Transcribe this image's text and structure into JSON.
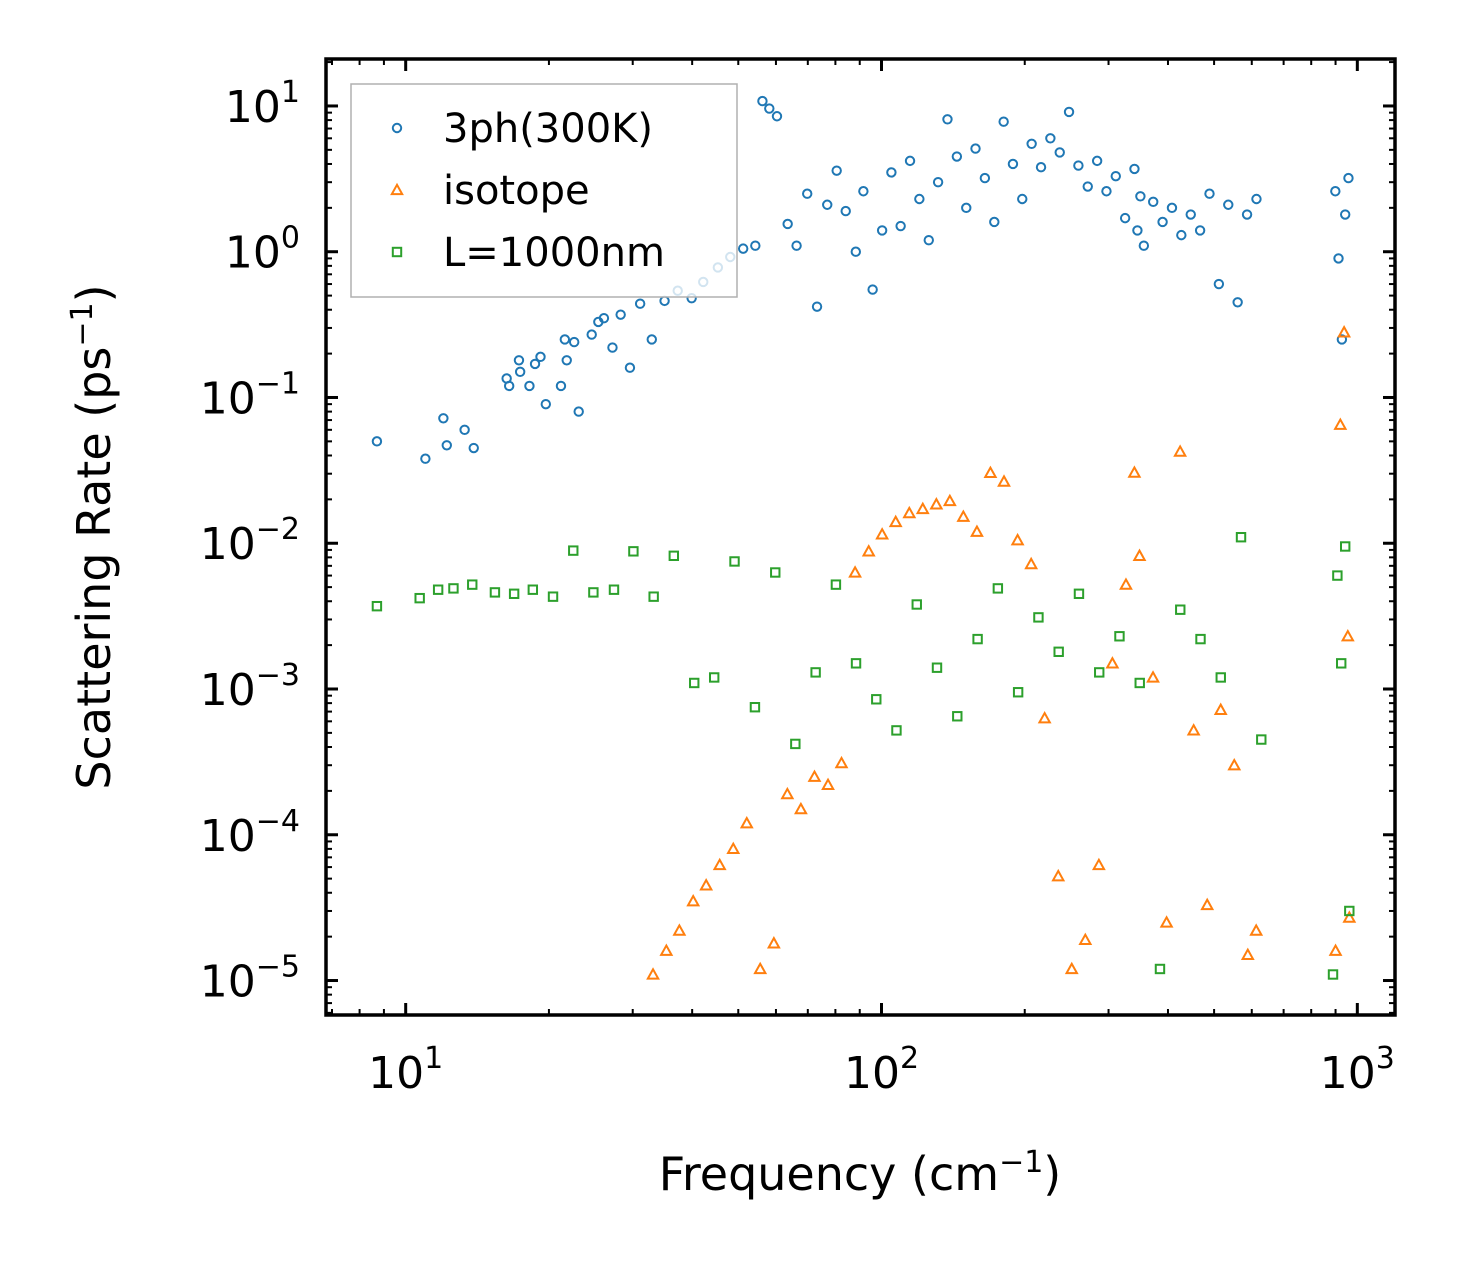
{
  "chart_data": {
    "type": "scatter",
    "title": "",
    "xlabel": "Frequency (cm",
    "xlabel_sup": "−1",
    "xlabel_end": ")",
    "ylabel": "Scattering Rate (ps",
    "ylabel_sup": "−1",
    "ylabel_end": ")",
    "xscale": "log",
    "yscale": "log",
    "xlim": [
      6.8,
      1200
    ],
    "ylim": [
      5.8e-06,
      21
    ],
    "xticks": [
      {
        "base": "10",
        "exp": "1",
        "value": 10
      },
      {
        "base": "10",
        "exp": "2",
        "value": 100
      },
      {
        "base": "10",
        "exp": "3",
        "value": 1000
      }
    ],
    "yticks": [
      {
        "base": "10",
        "exp": "1",
        "value": 10
      },
      {
        "base": "10",
        "exp": "0",
        "value": 1
      },
      {
        "base": "10",
        "exp": "−1",
        "value": 0.1
      },
      {
        "base": "10",
        "exp": "−2",
        "value": 0.01
      },
      {
        "base": "10",
        "exp": "−3",
        "value": 0.001
      },
      {
        "base": "10",
        "exp": "−4",
        "value": 0.0001
      },
      {
        "base": "10",
        "exp": "−5",
        "value": 1e-05
      }
    ],
    "legend_position": "top-left",
    "series": [
      {
        "name": "3ph(300K)",
        "color": "#1f77b4",
        "marker": "circle",
        "points": [
          [
            8.7,
            0.05
          ],
          [
            11,
            0.038
          ],
          [
            12,
            0.072
          ],
          [
            12.2,
            0.047
          ],
          [
            13.3,
            0.06
          ],
          [
            13.9,
            0.045
          ],
          [
            16.3,
            0.135
          ],
          [
            16.5,
            0.12
          ],
          [
            17.3,
            0.18
          ],
          [
            17.4,
            0.15
          ],
          [
            18.2,
            0.12
          ],
          [
            18.7,
            0.17
          ],
          [
            19.2,
            0.19
          ],
          [
            19.7,
            0.09
          ],
          [
            21.2,
            0.12
          ],
          [
            21.6,
            0.25
          ],
          [
            21.8,
            0.18
          ],
          [
            22.6,
            0.24
          ],
          [
            23.1,
            0.08
          ],
          [
            24.6,
            0.27
          ],
          [
            25.4,
            0.33
          ],
          [
            26.1,
            0.35
          ],
          [
            27.2,
            0.22
          ],
          [
            28.3,
            0.37
          ],
          [
            29.6,
            0.16
          ],
          [
            31.1,
            0.44
          ],
          [
            32.9,
            0.25
          ],
          [
            35,
            0.46
          ],
          [
            37.3,
            0.54
          ],
          [
            39.9,
            0.48
          ],
          [
            42.2,
            0.62
          ],
          [
            45.3,
            0.78
          ],
          [
            48.1,
            0.92
          ],
          [
            51.2,
            1.05
          ],
          [
            54.3,
            1.1
          ],
          [
            56.2,
            10.8
          ],
          [
            58.1,
            9.6
          ],
          [
            60.3,
            8.5
          ],
          [
            63.5,
            1.55
          ],
          [
            66.3,
            1.1
          ],
          [
            69.8,
            2.5
          ],
          [
            73.2,
            0.42
          ],
          [
            76.9,
            2.1
          ],
          [
            80.5,
            3.6
          ],
          [
            84.1,
            1.9
          ],
          [
            88.3,
            1.0
          ],
          [
            91.6,
            2.6
          ],
          [
            95.8,
            0.55
          ],
          [
            100.3,
            1.4
          ],
          [
            104.9,
            3.5
          ],
          [
            109.7,
            1.5
          ],
          [
            114.8,
            4.2
          ],
          [
            120.1,
            2.3
          ],
          [
            125.7,
            1.2
          ],
          [
            131.5,
            3.0
          ],
          [
            137.6,
            8.1
          ],
          [
            144,
            4.5
          ],
          [
            150.7,
            2.0
          ],
          [
            157.6,
            5.1
          ],
          [
            164.9,
            3.2
          ],
          [
            172.6,
            1.6
          ],
          [
            180.6,
            7.8
          ],
          [
            188.9,
            4.0
          ],
          [
            197.6,
            2.3
          ],
          [
            206.8,
            5.5
          ],
          [
            216.4,
            3.8
          ],
          [
            226.4,
            6.0
          ],
          [
            236.9,
            4.8
          ],
          [
            247.8,
            9.1
          ],
          [
            259.3,
            3.9
          ],
          [
            271.3,
            2.8
          ],
          [
            283.9,
            4.2
          ],
          [
            297,
            2.6
          ],
          [
            310.7,
            3.3
          ],
          [
            325.1,
            1.7
          ],
          [
            340.1,
            3.7
          ],
          [
            345,
            1.4
          ],
          [
            350,
            2.4
          ],
          [
            355.9,
            1.1
          ],
          [
            372.4,
            2.2
          ],
          [
            389.7,
            1.6
          ],
          [
            407.8,
            2.0
          ],
          [
            426.7,
            1.3
          ],
          [
            446.6,
            1.8
          ],
          [
            467.3,
            1.4
          ],
          [
            489,
            2.5
          ],
          [
            511.7,
            0.6
          ],
          [
            535.5,
            2.1
          ],
          [
            560.4,
            0.45
          ],
          [
            586.5,
            1.8
          ],
          [
            613.8,
            2.3
          ],
          [
            899,
            2.6
          ],
          [
            913,
            0.9
          ],
          [
            928,
            0.25
          ],
          [
            943,
            1.8
          ],
          [
            958,
            3.2
          ]
        ]
      },
      {
        "name": "isotope",
        "color": "#ff7f0e",
        "marker": "triangle",
        "points": [
          [
            33.1,
            1.1e-05
          ],
          [
            35.3,
            1.6e-05
          ],
          [
            37.6,
            2.2e-05
          ],
          [
            40.2,
            3.5e-05
          ],
          [
            42.8,
            4.5e-05
          ],
          [
            45.7,
            6.2e-05
          ],
          [
            48.8,
            8e-05
          ],
          [
            52.1,
            0.00012
          ],
          [
            55.6,
            1.2e-05
          ],
          [
            59.4,
            1.8e-05
          ],
          [
            63.4,
            0.00019
          ],
          [
            67.7,
            0.00015
          ],
          [
            72.3,
            0.00025
          ],
          [
            77.2,
            0.00022
          ],
          [
            82.4,
            0.00031
          ],
          [
            88,
            0.0063
          ],
          [
            94,
            0.0088
          ],
          [
            100.3,
            0.0115
          ],
          [
            107.1,
            0.014
          ],
          [
            114.4,
            0.0161
          ],
          [
            122.1,
            0.0172
          ],
          [
            130.4,
            0.0185
          ],
          [
            139.2,
            0.0195
          ],
          [
            148.6,
            0.0152
          ],
          [
            158.7,
            0.012
          ],
          [
            169.4,
            0.0304
          ],
          [
            180.9,
            0.0265
          ],
          [
            193.2,
            0.0105
          ],
          [
            206.3,
            0.0072
          ],
          [
            220.2,
            0.00063
          ],
          [
            235.2,
            5.2e-05
          ],
          [
            251.1,
            1.2e-05
          ],
          [
            268.1,
            1.9e-05
          ],
          [
            286.3,
            6.2e-05
          ],
          [
            305.7,
            0.0015
          ],
          [
            326.4,
            0.0052
          ],
          [
            340,
            0.0305
          ],
          [
            348.5,
            0.0082
          ],
          [
            372.1,
            0.0012
          ],
          [
            397.3,
            2.5e-05
          ],
          [
            424.2,
            0.0425
          ],
          [
            452.9,
            0.00052
          ],
          [
            483.6,
            3.3e-05
          ],
          [
            516.3,
            0.00072
          ],
          [
            551.3,
            0.0003
          ],
          [
            588.6,
            1.5e-05
          ],
          [
            613,
            2.2e-05
          ],
          [
            900,
            1.6e-05
          ],
          [
            921,
            0.065
          ],
          [
            938,
            0.28
          ],
          [
            955,
            0.0023
          ],
          [
            962,
            2.7e-05
          ]
        ]
      },
      {
        "name": "L=1000nm",
        "color": "#2ca02c",
        "marker": "square",
        "points": [
          [
            8.7,
            0.0037
          ],
          [
            10.7,
            0.0042
          ],
          [
            11.7,
            0.0048
          ],
          [
            12.6,
            0.0049
          ],
          [
            13.8,
            0.0052
          ],
          [
            15.4,
            0.0046
          ],
          [
            16.9,
            0.0045
          ],
          [
            18.5,
            0.0048
          ],
          [
            20.4,
            0.0043
          ],
          [
            22.5,
            0.0089
          ],
          [
            24.8,
            0.0046
          ],
          [
            27.4,
            0.0048
          ],
          [
            30.1,
            0.0088
          ],
          [
            33.2,
            0.0043
          ],
          [
            36.6,
            0.0082
          ],
          [
            40.4,
            0.0011
          ],
          [
            44.5,
            0.0012
          ],
          [
            49.1,
            0.0075
          ],
          [
            54.2,
            0.00075
          ],
          [
            59.8,
            0.0063
          ],
          [
            65.9,
            0.00042
          ],
          [
            72.7,
            0.0013
          ],
          [
            80.2,
            0.0052
          ],
          [
            88.4,
            0.0015
          ],
          [
            97.5,
            0.00085
          ],
          [
            107.5,
            0.00052
          ],
          [
            118.6,
            0.0038
          ],
          [
            130.8,
            0.0014
          ],
          [
            144.3,
            0.00065
          ],
          [
            159.2,
            0.0022
          ],
          [
            175.6,
            0.0049
          ],
          [
            193.7,
            0.00095
          ],
          [
            213.7,
            0.0031
          ],
          [
            235.7,
            0.0018
          ],
          [
            260,
            0.0045
          ],
          [
            286.8,
            0.0013
          ],
          [
            316.3,
            0.0023
          ],
          [
            348.9,
            0.0011
          ],
          [
            384.8,
            1.2e-05
          ],
          [
            424.5,
            0.0035
          ],
          [
            468.2,
            0.0022
          ],
          [
            516.4,
            0.0012
          ],
          [
            569.6,
            0.011
          ],
          [
            628.3,
            0.00045
          ],
          [
            889,
            1.1e-05
          ],
          [
            908,
            0.006
          ],
          [
            925,
            0.0015
          ],
          [
            943,
            0.0095
          ],
          [
            962,
            3e-05
          ]
        ]
      }
    ]
  }
}
